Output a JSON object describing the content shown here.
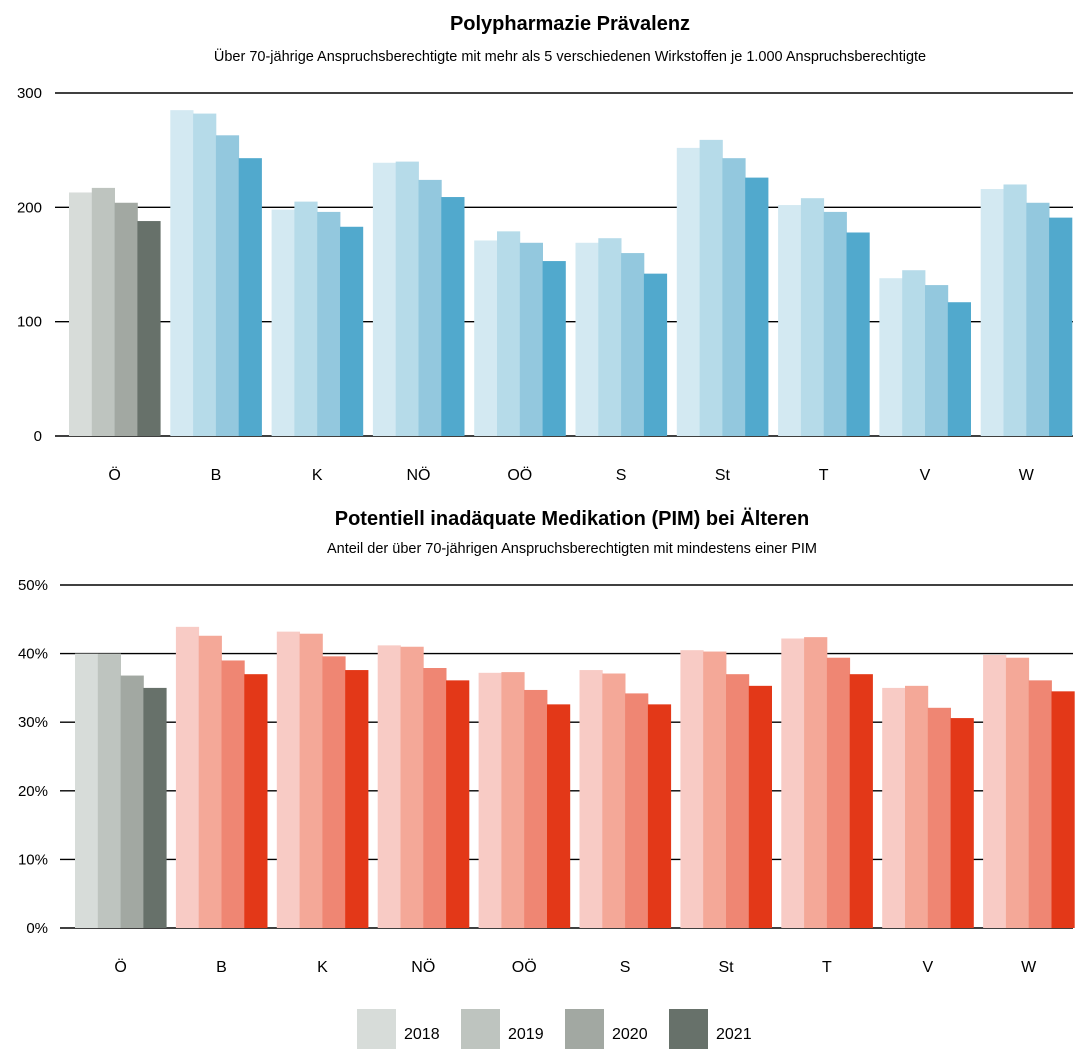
{
  "legend": {
    "entries": [
      "2018",
      "2019",
      "2020",
      "2021"
    ],
    "colors": [
      "#d7dcd9",
      "#bec4bf",
      "#a2a8a2",
      "#67716a"
    ]
  },
  "chart_data": [
    {
      "type": "bar",
      "title": "Polypharmazie Prävalenz",
      "subtitle": "Über 70-jährige Anspruchsberechtigte mit mehr als 5 verschiedenen Wirkstoffen je 1.000 Anspruchsberechtigte",
      "categories": [
        "Ö",
        "B",
        "K",
        "NÖ",
        "OÖ",
        "S",
        "St",
        "T",
        "V",
        "W"
      ],
      "ylim": [
        0,
        300
      ],
      "yticks": [
        0,
        100,
        200,
        300
      ],
      "ytick_labels": [
        "0",
        "100",
        "200",
        "300"
      ],
      "grid": true,
      "series": [
        {
          "name": "2018",
          "values": [
            213,
            285,
            198,
            239,
            171,
            169,
            252,
            202,
            138,
            216
          ]
        },
        {
          "name": "2019",
          "values": [
            217,
            282,
            205,
            240,
            179,
            173,
            259,
            208,
            145,
            220
          ]
        },
        {
          "name": "2020",
          "values": [
            204,
            263,
            196,
            224,
            169,
            160,
            243,
            196,
            132,
            204
          ]
        },
        {
          "name": "2021",
          "values": [
            188,
            243,
            183,
            209,
            153,
            142,
            226,
            178,
            117,
            191
          ]
        }
      ],
      "colors_reference": [
        "#d7dcd9",
        "#bec4bf",
        "#a2a8a2",
        "#67716a"
      ],
      "colors_region": [
        "#d3e9f2",
        "#b6dbe9",
        "#93c8de",
        "#51a9cd"
      ]
    },
    {
      "type": "bar",
      "title": "Potentiell inadäquate Medikation (PIM) bei Älteren",
      "subtitle": "Anteil der über 70-jährigen Anspruchsberechtigten mit mindestens einer PIM",
      "categories": [
        "Ö",
        "B",
        "K",
        "NÖ",
        "OÖ",
        "S",
        "St",
        "T",
        "V",
        "W"
      ],
      "ylim": [
        0,
        50
      ],
      "yticks": [
        0,
        10,
        20,
        30,
        40,
        50
      ],
      "ytick_labels": [
        "0%",
        "10%",
        "20%",
        "30%",
        "40%",
        "50%"
      ],
      "grid": true,
      "series": [
        {
          "name": "2018",
          "values": [
            40.0,
            43.9,
            43.2,
            41.2,
            37.2,
            37.6,
            40.5,
            42.2,
            35.0,
            39.8
          ]
        },
        {
          "name": "2019",
          "values": [
            40.0,
            42.6,
            42.9,
            41.0,
            37.3,
            37.1,
            40.3,
            42.4,
            35.3,
            39.4
          ]
        },
        {
          "name": "2020",
          "values": [
            36.8,
            39.0,
            39.6,
            37.9,
            34.7,
            34.2,
            37.0,
            39.4,
            32.1,
            36.1
          ]
        },
        {
          "name": "2021",
          "values": [
            35.0,
            37.0,
            37.6,
            36.1,
            32.6,
            32.6,
            35.3,
            37.0,
            30.6,
            34.5
          ]
        }
      ],
      "colors_reference": [
        "#d7dcd9",
        "#bec4bf",
        "#a2a8a2",
        "#67716a"
      ],
      "colors_region": [
        "#f8cbc5",
        "#f4a898",
        "#ef8673",
        "#e33818"
      ]
    }
  ]
}
